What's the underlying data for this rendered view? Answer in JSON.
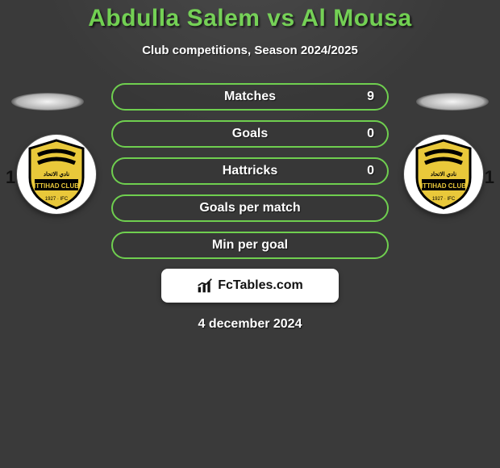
{
  "header": {
    "title": "Abdulla Salem vs Al Mousa",
    "title_color": "#6fcf4f",
    "subtitle": "Club competitions, Season 2024/2025"
  },
  "players": {
    "left": {
      "jersey_number": "1",
      "club": "ITTIHAD CLUB"
    },
    "right": {
      "jersey_number": "1",
      "club": "ITTIHAD CLUB"
    }
  },
  "badge_colors": {
    "shield_fill": "#e9c83a",
    "shield_stroke": "#000000",
    "stripe": "#000000",
    "text": "#000000"
  },
  "pill_border_color": "#6fcf4f",
  "stats": [
    {
      "label": "Matches",
      "right_value": "9"
    },
    {
      "label": "Goals",
      "right_value": "0"
    },
    {
      "label": "Hattricks",
      "right_value": "0"
    },
    {
      "label": "Goals per match",
      "right_value": ""
    },
    {
      "label": "Min per goal",
      "right_value": ""
    }
  ],
  "brand": {
    "text": "FcTables.com"
  },
  "footer": {
    "date": "4 december 2024"
  }
}
